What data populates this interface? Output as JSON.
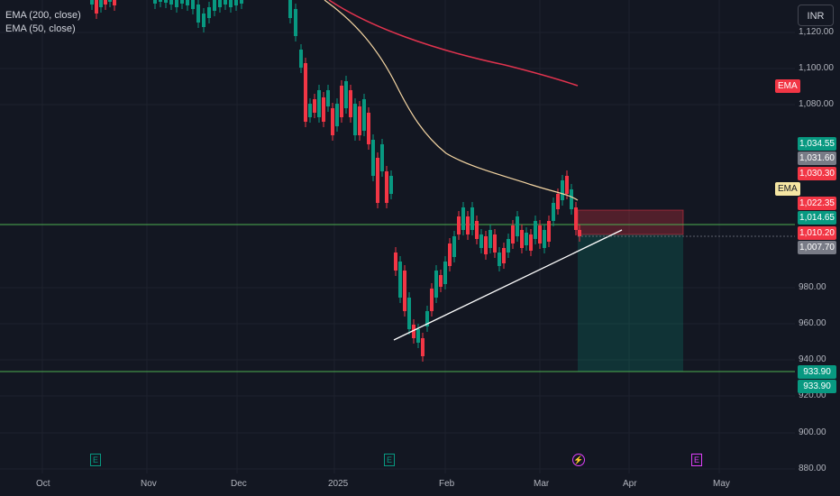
{
  "legend": {
    "ema200": "EMA (200, close)",
    "ema50": "EMA (50, close)"
  },
  "currency_button": "INR",
  "y_ticks": [
    "1,120.00",
    "1,100.00",
    "1,080.00",
    "980.00",
    "960.00",
    "940.00",
    "920.00",
    "900.00",
    "880.00"
  ],
  "x_ticks": [
    "Oct",
    "Nov",
    "Dec",
    "2025",
    "Feb",
    "Mar",
    "Apr",
    "May"
  ],
  "price_tags": [
    {
      "label": "1,034.55",
      "color": "#089981"
    },
    {
      "label": "1,031.60",
      "color": "#787b86"
    },
    {
      "label": "1,030.30",
      "color": "#f23645"
    },
    {
      "label": "1,022.35",
      "color": "#f23645"
    },
    {
      "label": "1,014.65",
      "color": "#089981"
    },
    {
      "label": "1,010.20",
      "color": "#f23645"
    },
    {
      "label": "1,007.70",
      "color": "#787b86"
    },
    {
      "label": "933.90",
      "color": "#089981"
    },
    {
      "label": "933.90",
      "color": "#089981"
    }
  ],
  "ema_tags": {
    "red": "EMA",
    "yellow": "EMA"
  },
  "event_markers": [
    {
      "icon": "earnings-icon",
      "letter": "E",
      "color": "#089981"
    },
    {
      "icon": "earnings-icon",
      "letter": "E",
      "color": "#089981"
    },
    {
      "icon": "dividend-icon",
      "letter": "⚡",
      "color": "#e040fb"
    },
    {
      "icon": "earnings-icon",
      "letter": "E",
      "color": "#e040fb"
    }
  ],
  "colors": {
    "background": "#131722",
    "up": "#089981",
    "down": "#f23645",
    "ema50": "#f5d6a3",
    "ema200": "#e0334e",
    "horizontal_line": "#4caf50",
    "trendline": "#ffffff"
  },
  "chart_data": {
    "type": "candlestick",
    "y_axis_ticks": [
      880,
      900,
      920,
      940,
      960,
      980,
      1080,
      1100,
      1120
    ],
    "x_axis_ticks": [
      "Oct",
      "Nov",
      "Dec",
      "2025",
      "Feb",
      "Mar",
      "Apr",
      "May"
    ],
    "horizontal_levels": [
      1010.2,
      933.9
    ],
    "position_tool": {
      "entry": 1007.7,
      "stop": 1022.35,
      "target": 933.9
    },
    "current_price": 1007.7,
    "series": [
      {
        "name": "EMA (200, close)",
        "latest": 1093
      },
      {
        "name": "EMA (50, close)",
        "latest": 1022.35
      }
    ]
  }
}
